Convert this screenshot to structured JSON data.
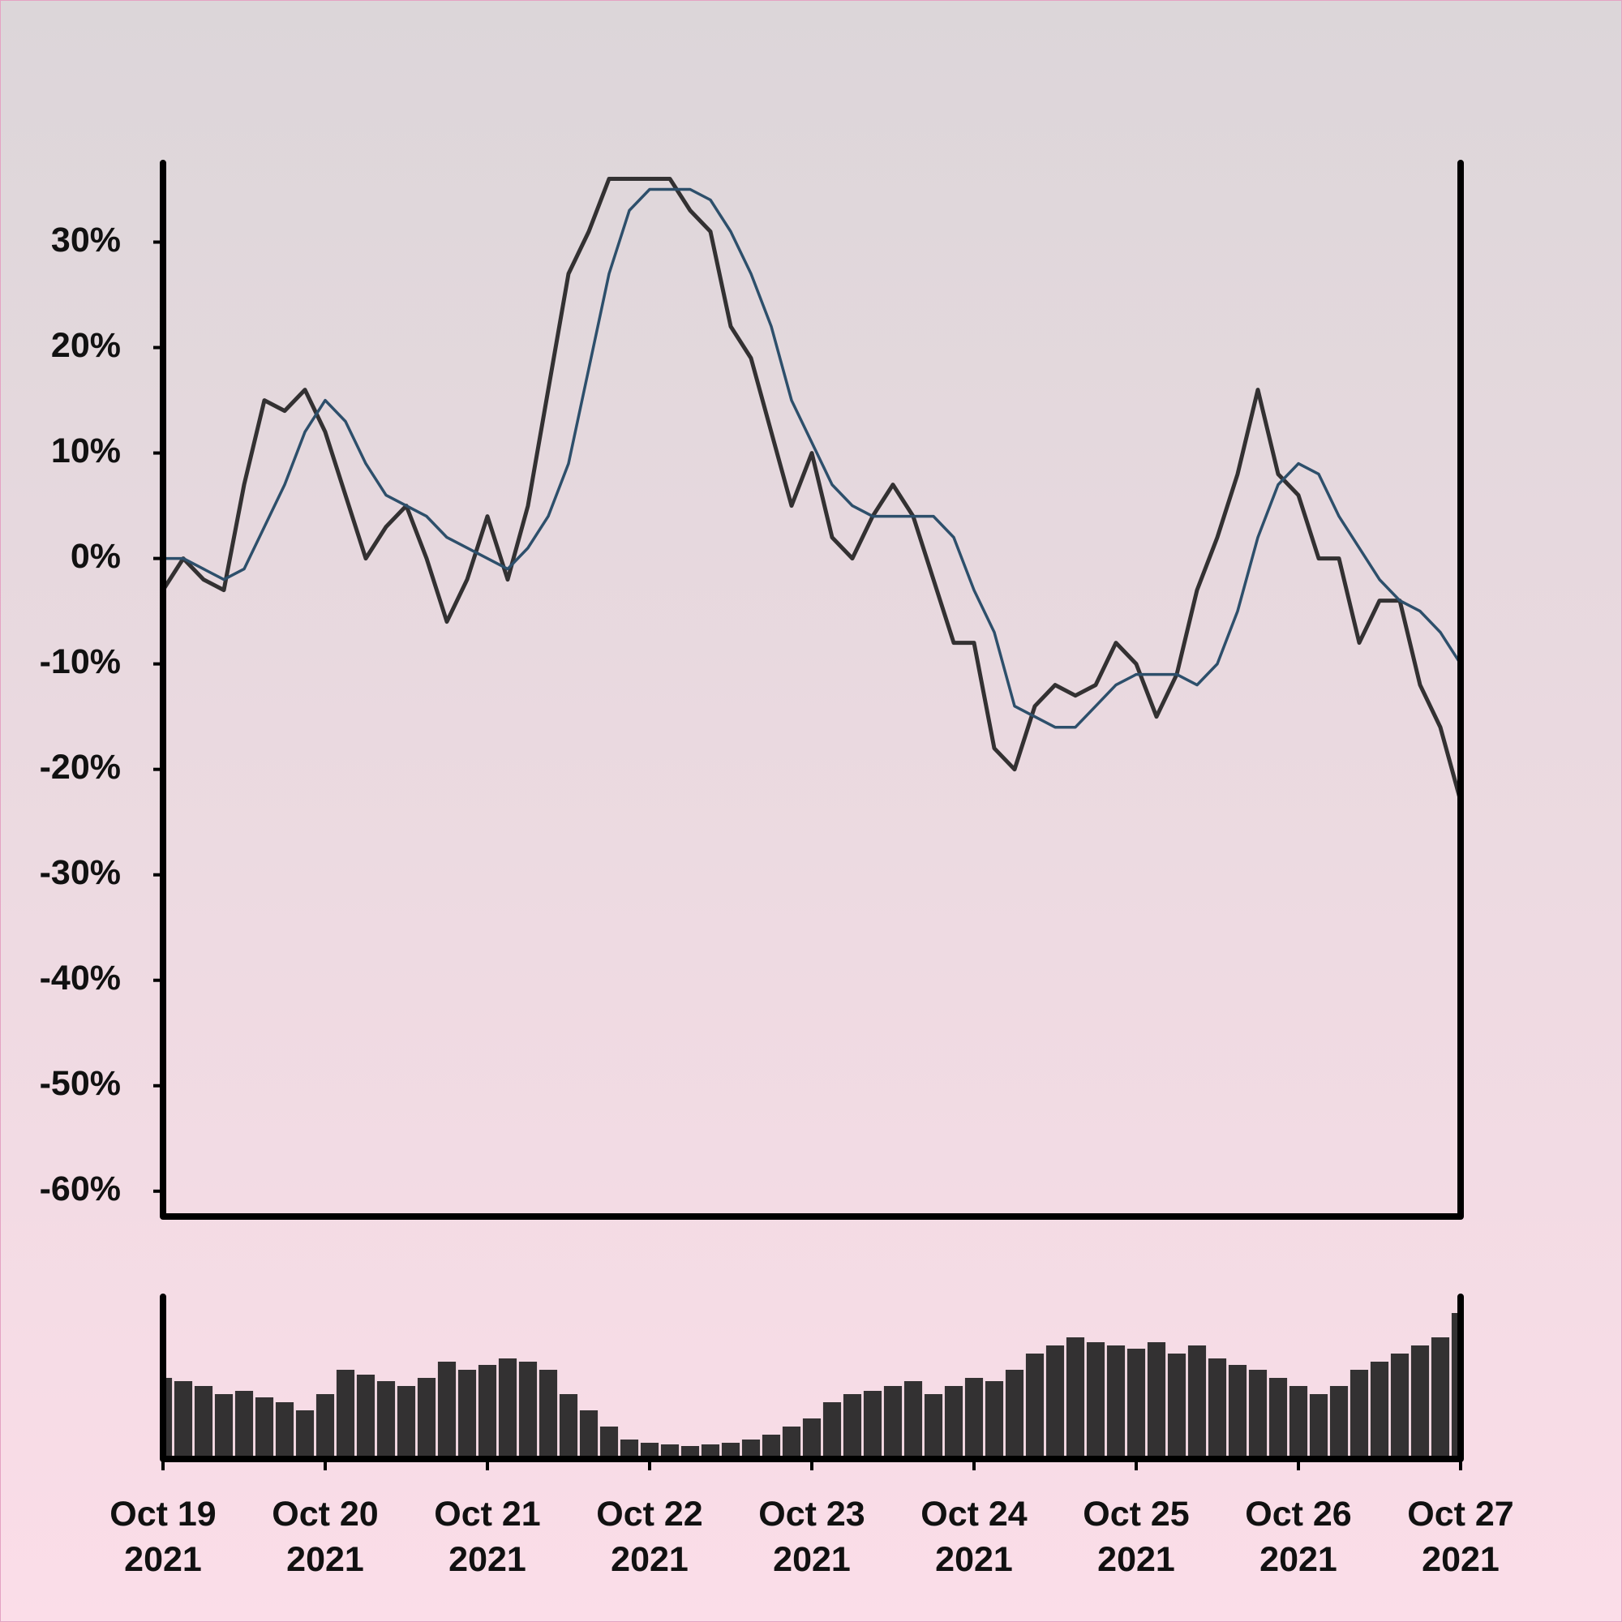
{
  "chart_data": [
    {
      "type": "line",
      "x": [
        0,
        0.125,
        0.25,
        0.375,
        0.5,
        0.625,
        0.75,
        0.875,
        1,
        1.125,
        1.25,
        1.375,
        1.5,
        1.625,
        1.75,
        1.875,
        2,
        2.125,
        2.25,
        2.375,
        2.5,
        2.625,
        2.75,
        2.875,
        3,
        3.125,
        3.25,
        3.375,
        3.5,
        3.625,
        3.75,
        3.875,
        4,
        4.125,
        4.25,
        4.375,
        4.5,
        4.625,
        4.75,
        4.875,
        5,
        5.125,
        5.25,
        5.375,
        5.5,
        5.625,
        5.75,
        5.875,
        6,
        6.125,
        6.25,
        6.375,
        6.5,
        6.625,
        6.75,
        6.875,
        7,
        7.125,
        7.25,
        7.375,
        7.5,
        7.625,
        7.75,
        7.875,
        8
      ],
      "series": [
        {
          "color": "#333132",
          "values": [
            -3,
            0,
            -2,
            -3,
            7,
            15,
            14,
            16,
            12,
            6,
            0,
            3,
            5,
            0,
            -6,
            -2,
            4,
            -2,
            5,
            16,
            27,
            31,
            36,
            36,
            36,
            36,
            33,
            31,
            22,
            19,
            12,
            5,
            10,
            2,
            0,
            4,
            7,
            4,
            -2,
            -8,
            -8,
            -18,
            -20,
            -14,
            -12,
            -13,
            -12,
            -8,
            -10,
            -15,
            -11,
            -3,
            2,
            8,
            16,
            8,
            6,
            0,
            0,
            -8,
            -4,
            -4,
            -12,
            -16,
            -23
          ]
        },
        {
          "color": "#2d4f6b",
          "values": [
            0,
            0,
            -1,
            -2,
            -1,
            3,
            7,
            12,
            15,
            13,
            9,
            6,
            5,
            4,
            2,
            1,
            0,
            -1,
            1,
            4,
            9,
            18,
            27,
            33,
            35,
            35,
            35,
            34,
            31,
            27,
            22,
            15,
            11,
            7,
            5,
            4,
            4,
            4,
            4,
            2,
            -3,
            -7,
            -14,
            -15,
            -16,
            -16,
            -14,
            -12,
            -11,
            -11,
            -11,
            -12,
            -10,
            -5,
            2,
            7,
            9,
            8,
            4,
            1,
            -2,
            -4,
            -5,
            -7,
            -10
          ]
        }
      ],
      "xlim": [
        0,
        8
      ],
      "ylim": [
        -62.4,
        37.5
      ],
      "yticks": [
        {
          "value": -60,
          "label": "-60%"
        },
        {
          "value": -50,
          "label": "-50%"
        },
        {
          "value": -40,
          "label": "-40%"
        },
        {
          "value": -30,
          "label": "-30%"
        },
        {
          "value": -20,
          "label": "-20%"
        },
        {
          "value": -10,
          "label": "-10%"
        },
        {
          "value": 0,
          "label": "0%"
        },
        {
          "value": 10,
          "label": "10%"
        },
        {
          "value": 20,
          "label": "20%"
        },
        {
          "value": 30,
          "label": "30%"
        }
      ]
    },
    {
      "type": "bar",
      "x": [
        0,
        0.125,
        0.25,
        0.375,
        0.5,
        0.625,
        0.75,
        0.875,
        1,
        1.125,
        1.25,
        1.375,
        1.5,
        1.625,
        1.75,
        1.875,
        2,
        2.125,
        2.25,
        2.375,
        2.5,
        2.625,
        2.75,
        2.875,
        3,
        3.125,
        3.25,
        3.375,
        3.5,
        3.625,
        3.75,
        3.875,
        4,
        4.125,
        4.25,
        4.375,
        4.5,
        4.625,
        4.75,
        4.875,
        5,
        5.125,
        5.25,
        5.375,
        5.5,
        5.625,
        5.75,
        5.875,
        6,
        6.125,
        6.25,
        6.375,
        6.5,
        6.625,
        6.75,
        6.875,
        7,
        7.125,
        7.25,
        7.375,
        7.5,
        7.625,
        7.75,
        7.875,
        8
      ],
      "values": [
        50,
        48,
        45,
        40,
        42,
        38,
        35,
        30,
        40,
        55,
        52,
        48,
        45,
        50,
        60,
        55,
        58,
        62,
        60,
        55,
        40,
        30,
        20,
        12,
        10,
        9,
        8,
        9,
        10,
        12,
        15,
        20,
        25,
        35,
        40,
        42,
        45,
        48,
        40,
        45,
        50,
        48,
        55,
        65,
        70,
        75,
        72,
        70,
        68,
        72,
        65,
        70,
        62,
        58,
        55,
        50,
        45,
        40,
        45,
        55,
        60,
        65,
        70,
        75,
        90
      ],
      "color": "#333132",
      "xlim": [
        0,
        8
      ],
      "ylim": [
        0,
        100
      ],
      "xticks": [
        {
          "value": 0,
          "label": "Oct 19\n2021"
        },
        {
          "value": 1,
          "label": "Oct 20\n2021"
        },
        {
          "value": 2,
          "label": "Oct 21\n2021"
        },
        {
          "value": 3,
          "label": "Oct 22\n2021"
        },
        {
          "value": 4,
          "label": "Oct 23\n2021"
        },
        {
          "value": 5,
          "label": "Oct 24\n2021"
        },
        {
          "value": 6,
          "label": "Oct 25\n2021"
        },
        {
          "value": 7,
          "label": "Oct 26\n2021"
        },
        {
          "value": 8,
          "label": "Oct 27\n2021"
        }
      ]
    }
  ]
}
